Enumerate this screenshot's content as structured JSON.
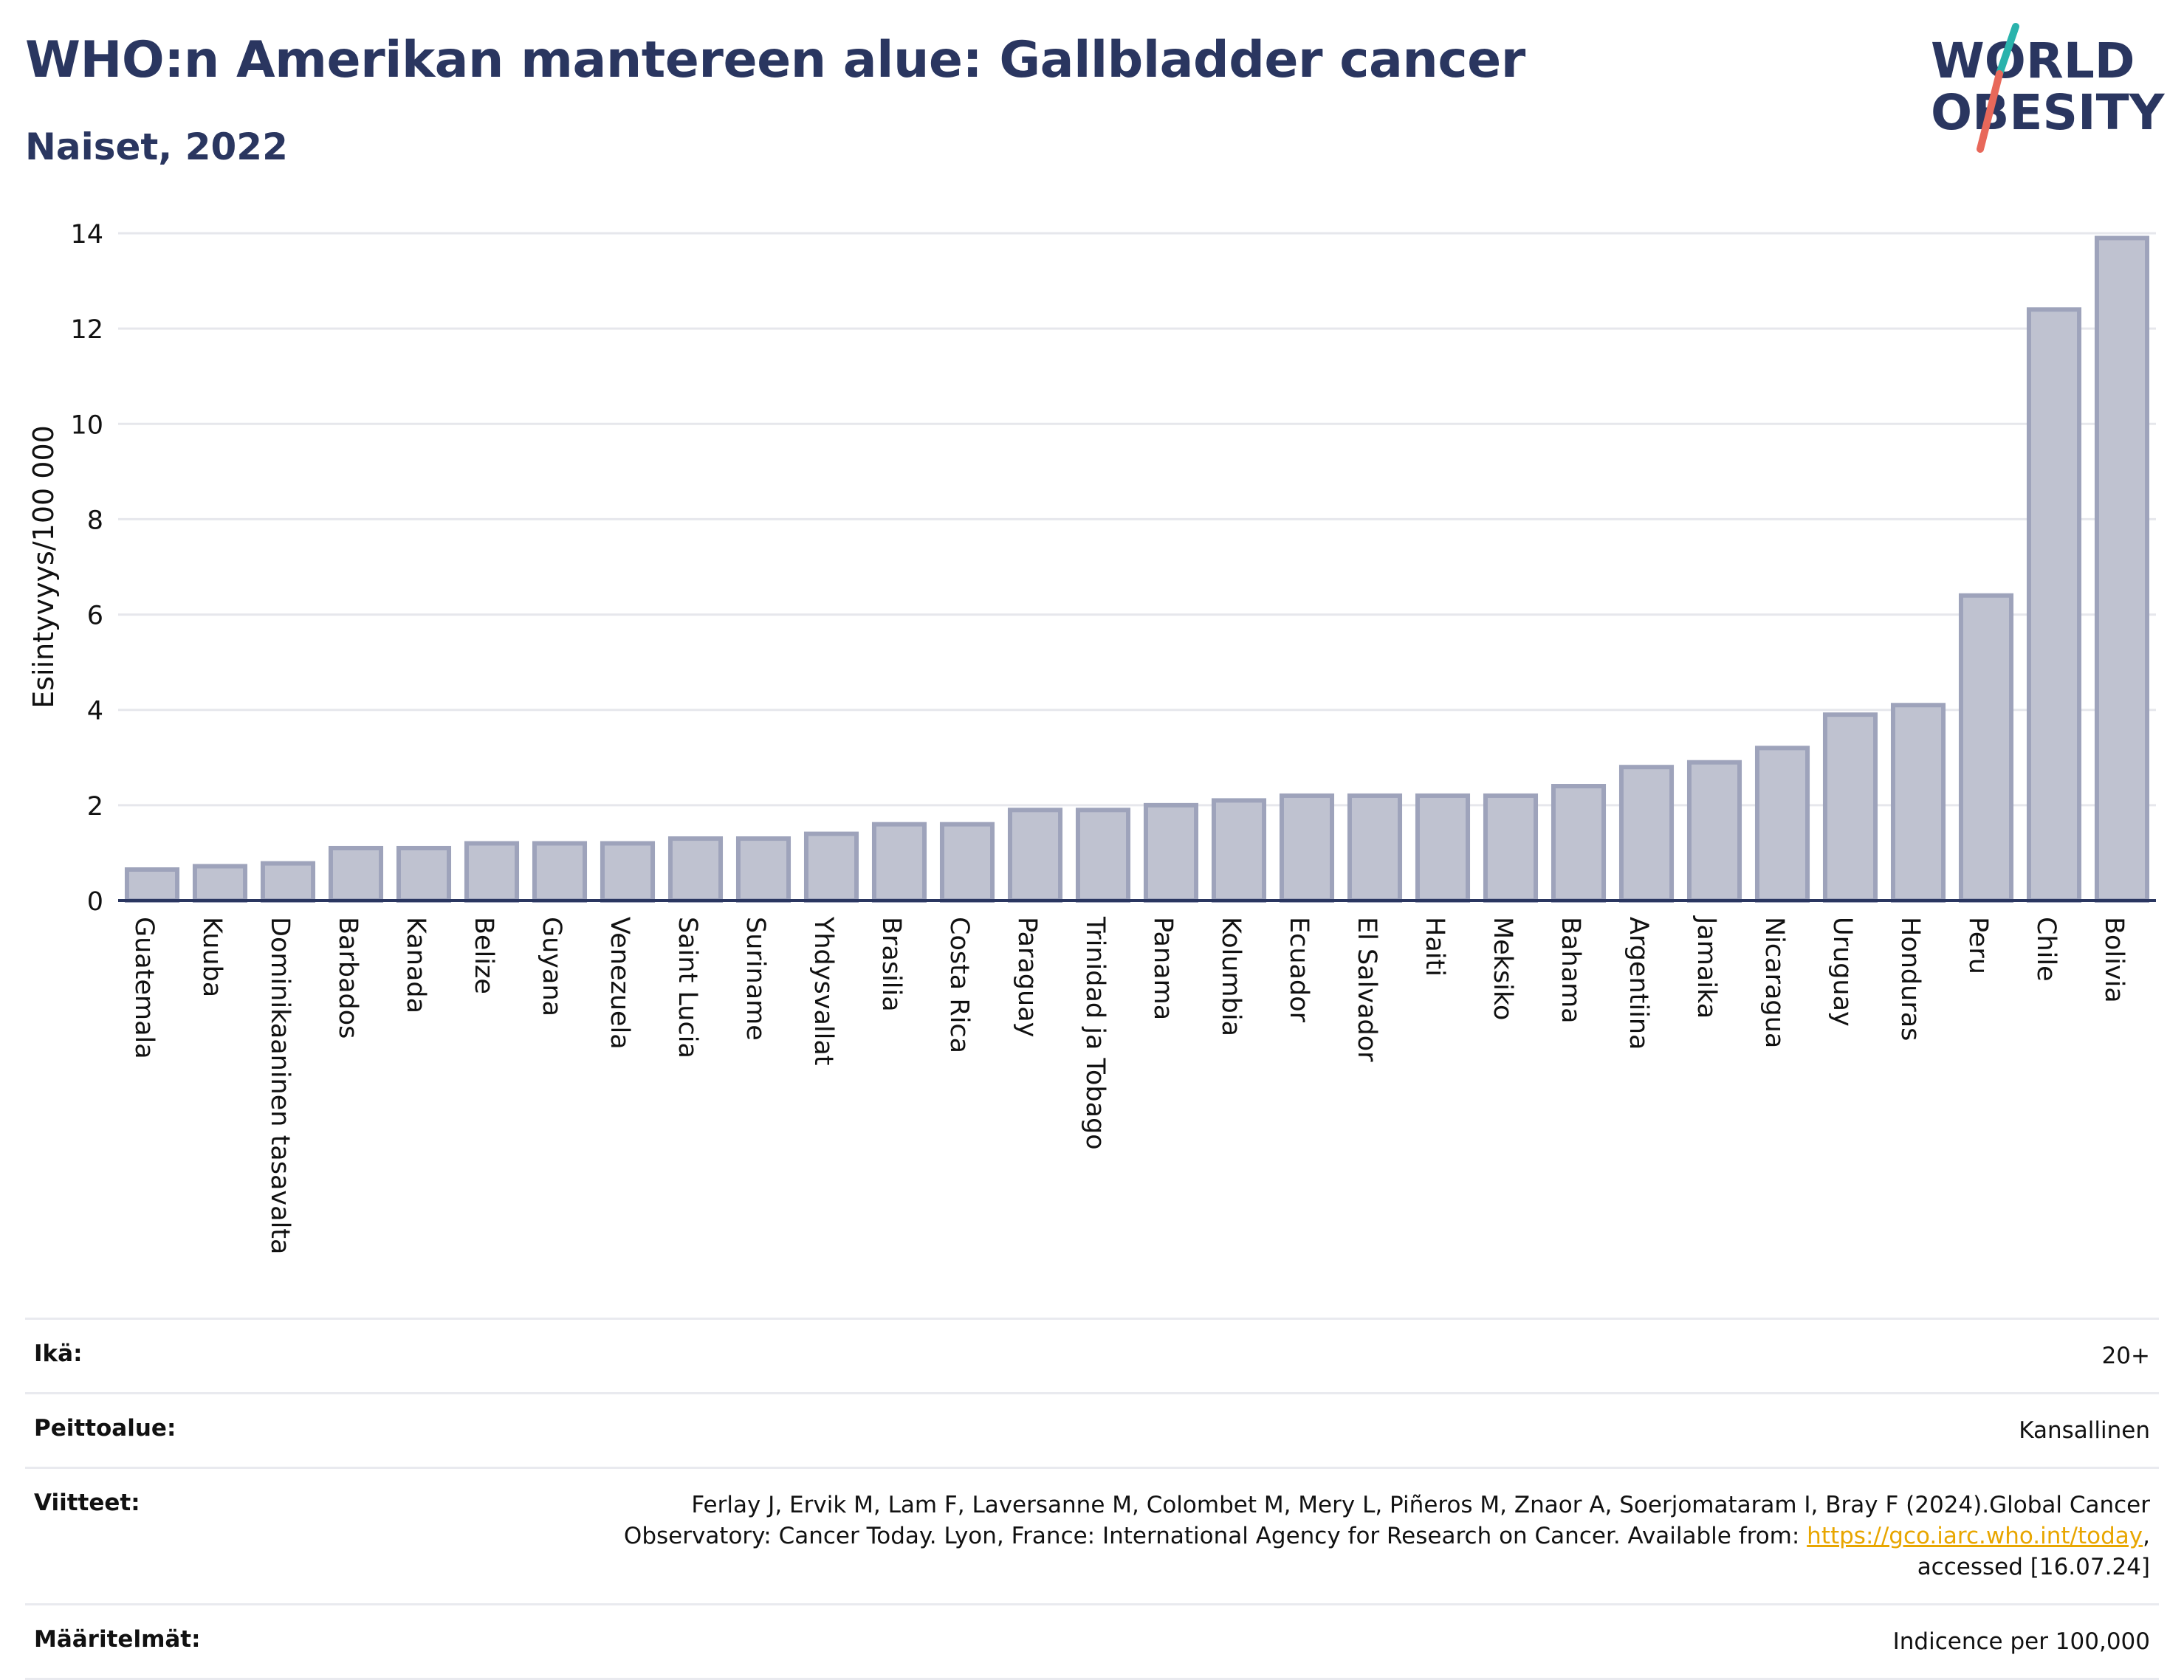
{
  "header": {
    "title": "WHO:n Amerikan mantereen alue: Gallbladder cancer",
    "subtitle": "Naiset, 2022"
  },
  "logo": {
    "line1": "WORLD",
    "line2": "OBESITY",
    "colors": {
      "text": "#2a3660",
      "slash_top": "#2ab3ac",
      "slash_bottom": "#e8685a"
    }
  },
  "colors": {
    "bar_fill": "#bfc2d0",
    "bar_stroke": "#9ea3bb",
    "axis": "#2a3660",
    "grid": "#e6e7ec",
    "link": "#e8a600"
  },
  "chart_data": {
    "type": "bar",
    "ylabel": "Esiintyvyys/100 000",
    "xlabel": "",
    "ylim": [
      0,
      14
    ],
    "yticks": [
      0,
      2,
      4,
      6,
      8,
      10,
      12,
      14
    ],
    "grid": true,
    "categories": [
      "Guatemala",
      "Kuuba",
      "Dominikaaninen tasavalta",
      "Barbados",
      "Kanada",
      "Belize",
      "Guyana",
      "Venezuela",
      "Saint Lucia",
      "Suriname",
      "Yhdysvallat",
      "Brasilia",
      "Costa Rica",
      "Paraguay",
      "Trinidad ja Tobago",
      "Panama",
      "Kolumbia",
      "Ecuador",
      "El Salvador",
      "Haiti",
      "Meksiko",
      "Bahama",
      "Argentiina",
      "Jamaika",
      "Nicaragua",
      "Uruguay",
      "Honduras",
      "Peru",
      "Chile",
      "Bolivia"
    ],
    "values": [
      0.65,
      0.72,
      0.78,
      1.1,
      1.1,
      1.2,
      1.2,
      1.2,
      1.3,
      1.3,
      1.4,
      1.6,
      1.6,
      1.9,
      1.9,
      2.0,
      2.1,
      2.2,
      2.2,
      2.2,
      2.2,
      2.4,
      2.8,
      2.9,
      3.2,
      3.9,
      4.1,
      6.4,
      12.4,
      13.9
    ]
  },
  "meta": [
    {
      "key": "Ikä:",
      "value": "20+"
    },
    {
      "key": "Peittoalue:",
      "value": "Kansallinen"
    },
    {
      "key": "Viitteet:",
      "value_line1": "Ferlay J, Ervik M, Lam F, Laversanne M, Colombet M, Mery L, Piñeros M, Znaor A, Soerjomataram I, Bray F (2024).Global Cancer",
      "value_line2_pre": "Observatory: Cancer Today. Lyon, France: International Agency for Research on Cancer. Available from: ",
      "link": "https://gco.iarc.who.int/today",
      "value_line2_post": ",",
      "value_line3": "accessed [16.07.24]"
    },
    {
      "key": "Määritelmät:",
      "value": "Indicence per 100,000"
    }
  ]
}
